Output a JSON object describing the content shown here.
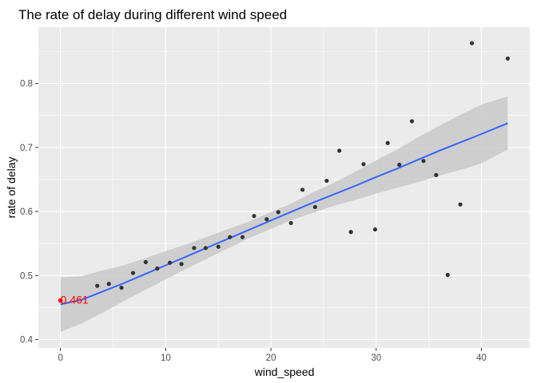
{
  "chart_data": {
    "type": "scatter",
    "title": "The rate of delay during different wind speed",
    "xlabel": "wind_speed",
    "ylabel": "rate of delay",
    "xlim": [
      -2.1,
      44.6
    ],
    "ylim": [
      0.387,
      0.888
    ],
    "x_ticks": [
      0,
      10,
      20,
      30,
      40
    ],
    "y_ticks": [
      0.4,
      0.5,
      0.6,
      0.7,
      0.8
    ],
    "x_tick_labels": [
      "0",
      "10",
      "20",
      "30",
      "40"
    ],
    "y_tick_labels": [
      "0.4",
      "0.5",
      "0.6",
      "0.7",
      "0.8"
    ],
    "grid": true,
    "legend": "none",
    "points": [
      {
        "x": 3.5,
        "y": 0.484
      },
      {
        "x": 4.6,
        "y": 0.487
      },
      {
        "x": 5.8,
        "y": 0.481
      },
      {
        "x": 6.9,
        "y": 0.504
      },
      {
        "x": 8.1,
        "y": 0.521
      },
      {
        "x": 9.2,
        "y": 0.511
      },
      {
        "x": 10.4,
        "y": 0.52
      },
      {
        "x": 11.5,
        "y": 0.518
      },
      {
        "x": 12.7,
        "y": 0.543
      },
      {
        "x": 13.8,
        "y": 0.543
      },
      {
        "x": 15.0,
        "y": 0.545
      },
      {
        "x": 16.1,
        "y": 0.56
      },
      {
        "x": 17.3,
        "y": 0.56
      },
      {
        "x": 18.4,
        "y": 0.593
      },
      {
        "x": 19.6,
        "y": 0.588
      },
      {
        "x": 20.7,
        "y": 0.599
      },
      {
        "x": 21.9,
        "y": 0.582
      },
      {
        "x": 23.0,
        "y": 0.634
      },
      {
        "x": 24.2,
        "y": 0.607
      },
      {
        "x": 25.3,
        "y": 0.648
      },
      {
        "x": 26.5,
        "y": 0.695
      },
      {
        "x": 27.6,
        "y": 0.568
      },
      {
        "x": 28.8,
        "y": 0.674
      },
      {
        "x": 29.9,
        "y": 0.572
      },
      {
        "x": 31.1,
        "y": 0.707
      },
      {
        "x": 32.2,
        "y": 0.673
      },
      {
        "x": 33.4,
        "y": 0.741
      },
      {
        "x": 34.5,
        "y": 0.679
      },
      {
        "x": 35.7,
        "y": 0.657
      },
      {
        "x": 36.8,
        "y": 0.501
      },
      {
        "x": 38.0,
        "y": 0.611
      },
      {
        "x": 39.1,
        "y": 0.863
      },
      {
        "x": 42.5,
        "y": 0.839
      }
    ],
    "smooth": {
      "x": [
        0,
        2,
        4,
        6,
        8,
        10,
        12,
        14,
        16,
        18,
        20,
        22,
        24,
        26,
        28,
        30,
        32,
        34,
        36,
        38,
        40,
        42.5
      ],
      "y": [
        0.455,
        0.462,
        0.475,
        0.488,
        0.502,
        0.516,
        0.53,
        0.544,
        0.558,
        0.572,
        0.586,
        0.6,
        0.614,
        0.627,
        0.64,
        0.654,
        0.667,
        0.681,
        0.695,
        0.708,
        0.721,
        0.738
      ],
      "lower": [
        0.412,
        0.425,
        0.442,
        0.46,
        0.477,
        0.494,
        0.511,
        0.527,
        0.543,
        0.559,
        0.573,
        0.587,
        0.598,
        0.609,
        0.618,
        0.628,
        0.637,
        0.646,
        0.656,
        0.665,
        0.675,
        0.697
      ],
      "upper": [
        0.497,
        0.499,
        0.508,
        0.516,
        0.527,
        0.538,
        0.549,
        0.561,
        0.573,
        0.585,
        0.599,
        0.613,
        0.63,
        0.645,
        0.662,
        0.68,
        0.697,
        0.716,
        0.734,
        0.751,
        0.767,
        0.78
      ]
    },
    "highlight": {
      "x": 0,
      "y": 0.461,
      "label": "0.461",
      "color": "#ff0000"
    },
    "colors": {
      "panel": "#ebebeb",
      "grid_major": "#ffffff",
      "point": "#333333",
      "smooth_line": "#3366ff",
      "ribbon": "#c9c9c9"
    }
  }
}
